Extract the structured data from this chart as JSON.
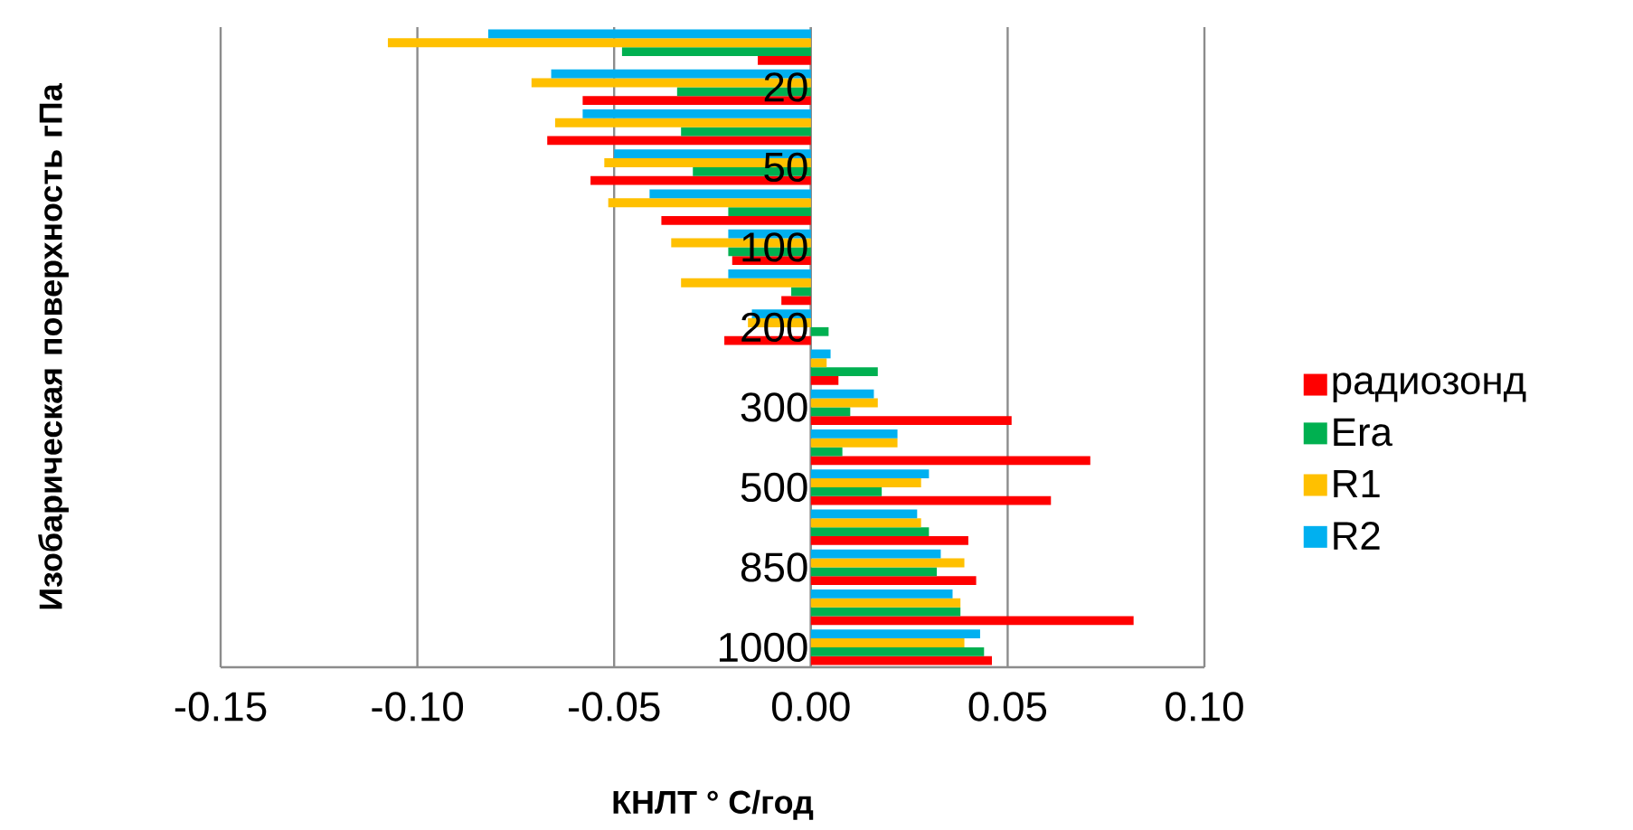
{
  "chart_data": {
    "type": "bar",
    "orientation": "horizontal",
    "xlabel": "КНЛТ ° С/год",
    "ylabel": "Изобарическая поверхность гПа",
    "categories": [
      null,
      "20",
      null,
      "50",
      null,
      "100",
      null,
      "200",
      null,
      "300",
      null,
      "500",
      null,
      "850",
      null,
      "1000"
    ],
    "series": [
      {
        "name": "радиозонд",
        "color": "#ff0000",
        "values": [
          -0.0135,
          -0.058,
          -0.067,
          -0.056,
          -0.038,
          -0.02,
          -0.0075,
          -0.022,
          0.007,
          0.051,
          0.071,
          0.061,
          0.04,
          0.042,
          0.082,
          0.046
        ]
      },
      {
        "name": "Era",
        "color": "#00b050",
        "values": [
          -0.048,
          -0.034,
          -0.033,
          -0.03,
          -0.021,
          -0.021,
          -0.005,
          0.0045,
          0.017,
          0.01,
          0.008,
          0.018,
          0.03,
          0.032,
          0.038,
          0.044
        ]
      },
      {
        "name": "R1",
        "color": "#ffc000",
        "values": [
          -0.1075,
          -0.071,
          -0.065,
          -0.0525,
          -0.0515,
          -0.0355,
          -0.033,
          -0.016,
          0.004,
          0.017,
          0.022,
          0.028,
          0.028,
          0.039,
          0.038,
          0.039
        ]
      },
      {
        "name": "R2",
        "color": "#00b0f0",
        "values": [
          -0.082,
          -0.066,
          -0.058,
          -0.05,
          -0.041,
          -0.021,
          -0.021,
          -0.015,
          0.005,
          0.016,
          0.022,
          0.03,
          0.027,
          0.033,
          0.036,
          0.043
        ]
      }
    ],
    "xlim": [
      -0.15,
      0.1
    ],
    "xticks": [
      {
        "value": -0.15,
        "label": "-0.15"
      },
      {
        "value": -0.1,
        "label": "-0.10"
      },
      {
        "value": -0.05,
        "label": "-0.05"
      },
      {
        "value": 0,
        "label": "0.00"
      },
      {
        "value": 0.05,
        "label": "0.05"
      },
      {
        "value": 0.1,
        "label": "0.10"
      }
    ],
    "grid": "x",
    "legend": "right"
  }
}
